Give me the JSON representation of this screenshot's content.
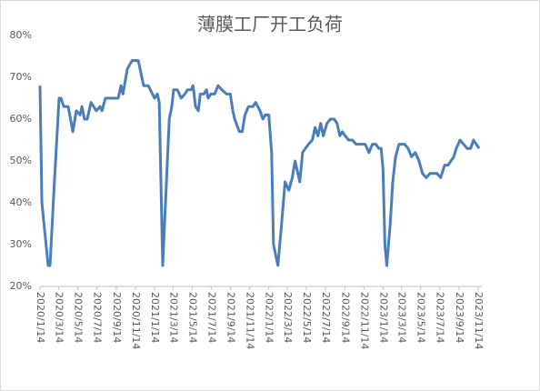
{
  "chart_data": {
    "type": "line",
    "title": "薄膜工厂开工负荷",
    "x": [
      "2020/1/14",
      "2020/1/20",
      "2020/2/9",
      "2020/2/15",
      "2020/2/29",
      "2020/3/15",
      "2020/3/21",
      "2020/3/30",
      "2020/4/13",
      "2020/4/28",
      "2020/5/9",
      "2020/5/21",
      "2020/5/27",
      "2020/6/4",
      "2020/6/13",
      "2020/6/25",
      "2020/7/12",
      "2020/7/24",
      "2020/7/30",
      "2020/8/10",
      "2020/9/3",
      "2020/9/20",
      "2020/9/29",
      "2020/10/5",
      "2020/10/19",
      "2020/11/3",
      "2020/11/23",
      "2020/12/10",
      "2020/12/25",
      "2021/1/14",
      "2021/1/23",
      "2021/1/29",
      "2021/2/9",
      "2021/2/24",
      "2021/3/2",
      "2021/3/10",
      "2021/3/16",
      "2021/3/28",
      "2021/4/9",
      "2021/4/21",
      "2021/4/29",
      "2021/5/11",
      "2021/5/17",
      "2021/5/25",
      "2021/6/3",
      "2021/6/9",
      "2021/6/20",
      "2021/6/29",
      "2021/7/4",
      "2021/7/13",
      "2021/7/25",
      "2021/8/5",
      "2021/8/17",
      "2021/9/1",
      "2021/9/13",
      "2021/9/21",
      "2021/9/27",
      "2021/10/12",
      "2021/10/21",
      "2021/10/30",
      "2021/11/10",
      "2021/11/24",
      "2021/12/3",
      "2021/12/17",
      "2021/12/26",
      "2022/1/3",
      "2022/1/14",
      "2022/1/23",
      "2022/1/29",
      "2022/2/12",
      "2022/2/24",
      "2022/3/7",
      "2022/3/19",
      "2022/3/30",
      "2022/4/8",
      "2022/4/17",
      "2022/4/23",
      "2022/5/2",
      "2022/5/11",
      "2022/5/21",
      "2022/6/2",
      "2022/6/11",
      "2022/6/20",
      "2022/6/29",
      "2022/7/7",
      "2022/7/19",
      "2022/7/30",
      "2022/8/11",
      "2022/8/20",
      "2022/8/29",
      "2022/9/6",
      "2022/9/15",
      "2022/9/26",
      "2022/10/8",
      "2022/10/20",
      "2022/11/3",
      "2022/11/18",
      "2022/11/30",
      "2022/12/11",
      "2022/12/22",
      "2022/12/31",
      "2023/1/8",
      "2023/1/14",
      "2023/1/20",
      "2023/1/26",
      "2023/2/6",
      "2023/2/14",
      "2023/2/23",
      "2023/3/6",
      "2023/3/24",
      "2023/4/4",
      "2023/4/15",
      "2023/4/27",
      "2023/5/9",
      "2023/5/20",
      "2023/6/1",
      "2023/6/13",
      "2023/7/6",
      "2023/7/17",
      "2023/7/30",
      "2023/8/10",
      "2023/8/19",
      "2023/8/28",
      "2023/9/5",
      "2023/9/17",
      "2023/9/28",
      "2023/10/10",
      "2023/10/21",
      "2023/10/30",
      "2023/11/8",
      "2023/11/17"
    ],
    "series": [
      {
        "color": "#4a7ebb",
        "values": [
          68,
          40,
          25,
          25,
          45,
          65,
          65,
          63,
          63,
          57,
          62,
          61,
          63,
          60,
          60,
          64,
          62,
          63,
          62,
          65,
          65,
          65,
          68,
          66,
          72,
          74,
          74,
          68,
          68,
          65,
          66,
          64,
          25,
          50,
          60,
          63,
          67,
          67,
          65,
          66,
          67,
          67,
          68,
          63,
          62,
          66,
          66,
          67,
          65,
          66,
          66,
          68,
          67,
          66,
          66,
          62,
          60,
          57,
          57,
          61,
          63,
          63,
          64,
          62,
          60,
          61,
          61,
          52,
          30,
          25,
          35,
          45,
          43,
          46,
          50,
          47,
          45,
          52,
          53,
          54,
          55,
          58,
          56,
          59,
          56,
          59,
          60,
          60,
          59,
          56,
          57,
          56,
          55,
          55,
          54,
          54,
          54,
          52,
          54,
          54,
          53,
          53,
          48,
          30,
          25,
          35,
          45,
          51,
          54,
          54,
          53,
          51,
          52,
          50,
          47,
          46,
          47,
          47,
          46,
          49,
          49,
          50,
          51,
          53,
          55,
          54,
          53,
          53,
          55,
          54,
          53
        ]
      }
    ],
    "xticks": [
      "2020/1/14",
      "2020/3/14",
      "2020/5/14",
      "2020/7/14",
      "2020/9/14",
      "2020/11/14",
      "2021/1/14",
      "2021/3/14",
      "2021/5/14",
      "2021/7/14",
      "2021/9/14",
      "2021/11/14",
      "2022/1/14",
      "2022/3/14",
      "2022/5/14",
      "2022/7/14",
      "2022/9/14",
      "2022/11/14",
      "2023/1/14",
      "2023/3/14",
      "2023/5/14",
      "2023/7/14",
      "2023/9/14",
      "2023/11/14"
    ],
    "ylim": [
      20,
      80
    ],
    "yticks": [
      {
        "value": 20,
        "label": "20%"
      },
      {
        "value": 30,
        "label": "30%"
      },
      {
        "value": 40,
        "label": "40%"
      },
      {
        "value": 50,
        "label": "50%"
      },
      {
        "value": 60,
        "label": "60%"
      },
      {
        "value": 70,
        "label": "70%"
      },
      {
        "value": 80,
        "label": "80%"
      }
    ],
    "grid": false
  }
}
